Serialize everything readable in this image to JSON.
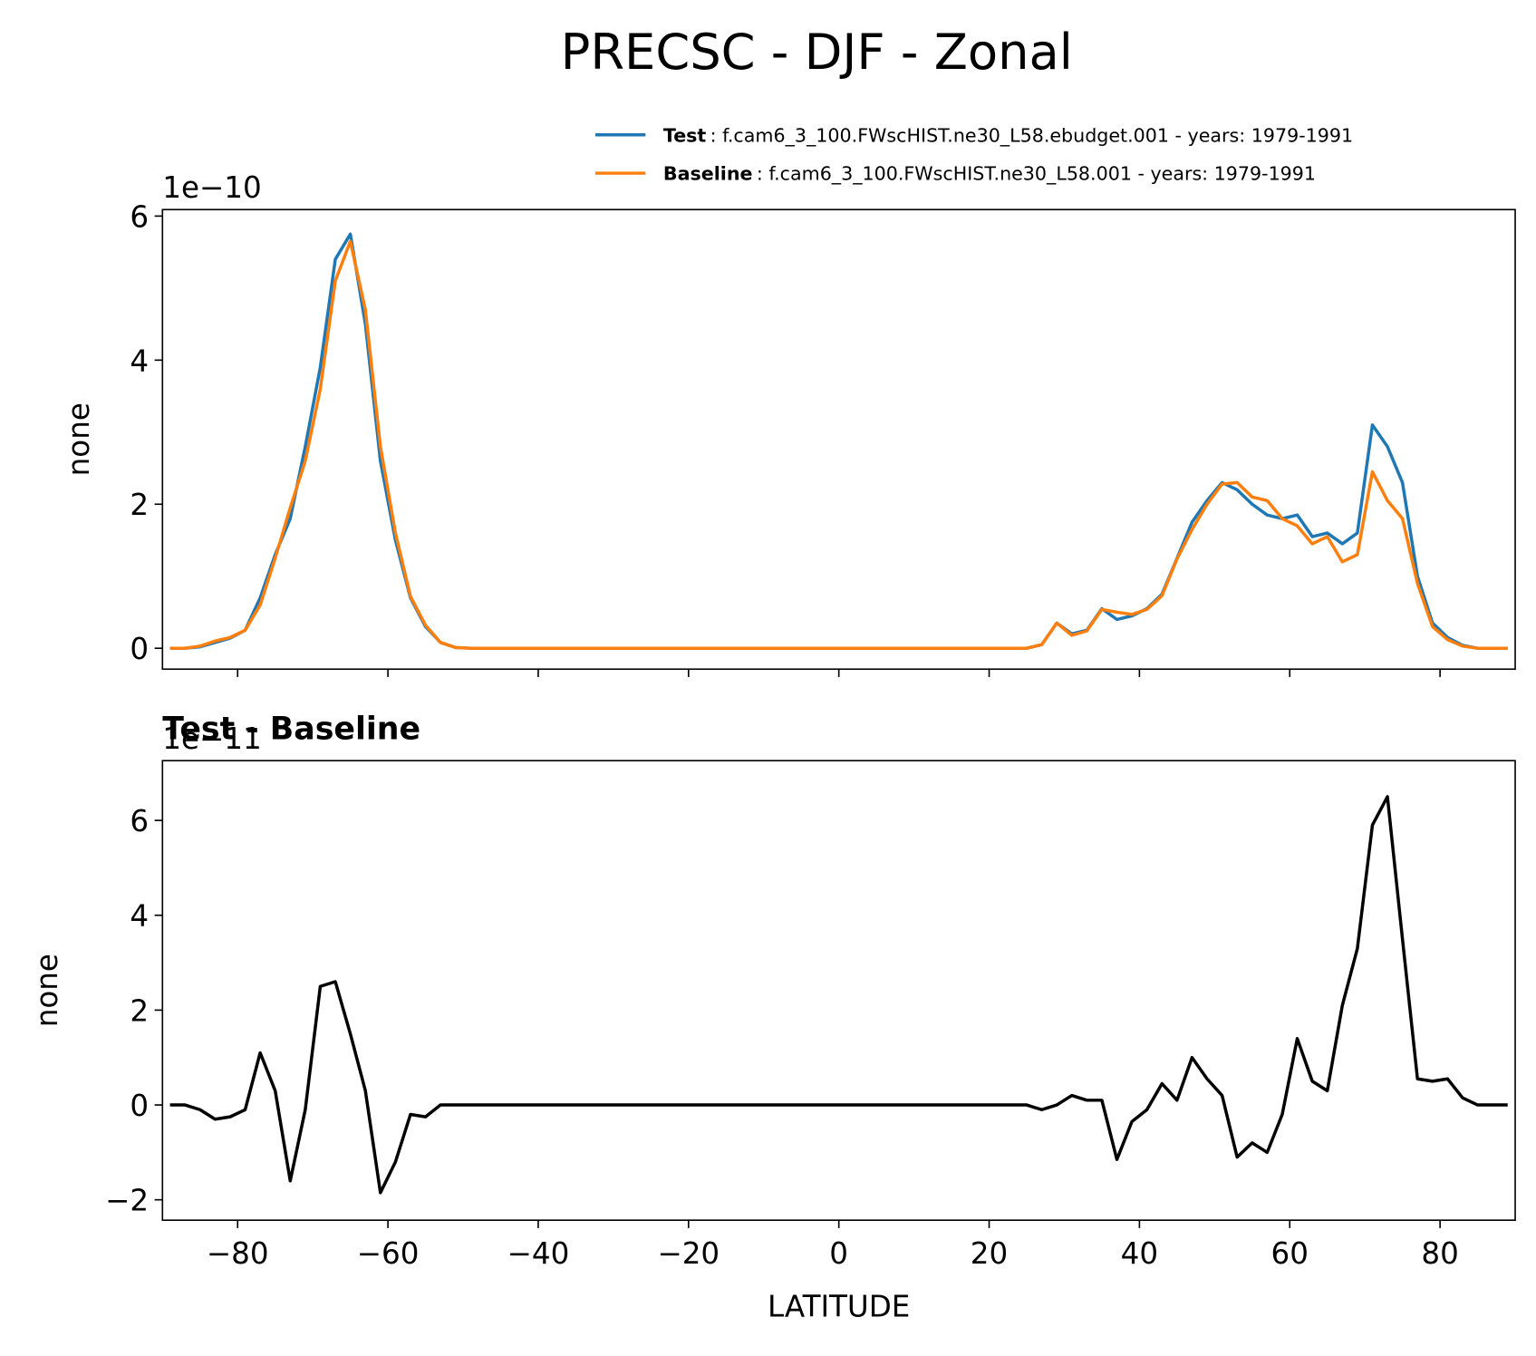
{
  "title": "PRECSC - DJF - Zonal",
  "chart_data": [
    {
      "type": "line",
      "y_offset_label": "1e−10",
      "ylabel": "none",
      "x": [
        -89,
        -87,
        -85,
        -83,
        -81,
        -79,
        -77,
        -75,
        -73,
        -71,
        -69,
        -67,
        -65,
        -63,
        -61,
        -59,
        -57,
        -55,
        -53,
        -51,
        -49,
        -47,
        -45,
        -43,
        -41,
        -39,
        -37,
        -35,
        -33,
        -31,
        -29,
        -27,
        -25,
        -23,
        -21,
        -19,
        -17,
        -15,
        -13,
        -11,
        -9,
        -7,
        -5,
        -3,
        -1,
        1,
        3,
        5,
        7,
        9,
        11,
        13,
        15,
        17,
        19,
        21,
        23,
        25,
        27,
        29,
        31,
        33,
        35,
        37,
        39,
        41,
        43,
        45,
        47,
        49,
        51,
        53,
        55,
        57,
        59,
        61,
        63,
        65,
        67,
        69,
        71,
        73,
        75,
        77,
        79,
        81,
        83,
        85,
        87,
        89
      ],
      "series": [
        {
          "name": "Test",
          "label": ": f.cam6_3_100.FWscHIST.ne30_L58.ebudget.001 - years: 1979-1991",
          "color": "#1f77b4",
          "values": [
            0,
            0,
            0.02,
            0.08,
            0.14,
            0.25,
            0.7,
            1.3,
            1.8,
            2.8,
            3.9,
            5.4,
            5.75,
            4.5,
            2.6,
            1.5,
            0.7,
            0.3,
            0.08,
            0.01,
            0,
            0,
            0,
            0,
            0,
            0,
            0,
            0,
            0,
            0,
            0,
            0,
            0,
            0,
            0,
            0,
            0,
            0,
            0,
            0,
            0,
            0,
            0,
            0,
            0,
            0,
            0,
            0,
            0,
            0,
            0,
            0,
            0,
            0,
            0,
            0,
            0,
            0,
            0.05,
            0.35,
            0.2,
            0.25,
            0.55,
            0.4,
            0.45,
            0.55,
            0.75,
            1.25,
            1.75,
            2.05,
            2.3,
            2.2,
            2.0,
            1.85,
            1.8,
            1.85,
            1.55,
            1.6,
            1.45,
            1.6,
            3.1,
            2.8,
            2.3,
            1.0,
            0.35,
            0.15,
            0.04,
            0,
            0,
            0
          ]
        },
        {
          "name": "Baseline",
          "label": ": f.cam6_3_100.FWscHIST.ne30_L58.001 - years: 1979-1991",
          "color": "#ff7f0e",
          "values": [
            0,
            0,
            0.03,
            0.1,
            0.15,
            0.25,
            0.6,
            1.25,
            1.95,
            2.6,
            3.6,
            5.1,
            5.65,
            4.7,
            2.8,
            1.6,
            0.72,
            0.32,
            0.08,
            0.01,
            0,
            0,
            0,
            0,
            0,
            0,
            0,
            0,
            0,
            0,
            0,
            0,
            0,
            0,
            0,
            0,
            0,
            0,
            0,
            0,
            0,
            0,
            0,
            0,
            0,
            0,
            0,
            0,
            0,
            0,
            0,
            0,
            0,
            0,
            0,
            0,
            0,
            0,
            0.05,
            0.35,
            0.18,
            0.24,
            0.54,
            0.5,
            0.47,
            0.54,
            0.73,
            1.24,
            1.65,
            2.0,
            2.28,
            2.3,
            2.1,
            2.05,
            1.8,
            1.7,
            1.45,
            1.55,
            1.2,
            1.3,
            2.45,
            2.05,
            1.8,
            0.9,
            0.3,
            0.12,
            0.03,
            0,
            0,
            0
          ]
        }
      ],
      "xlim": [
        -90,
        90
      ],
      "xticks": [
        -80,
        -60,
        -40,
        -20,
        0,
        20,
        40,
        60,
        80
      ],
      "ylim": [
        -0.29,
        6.09
      ],
      "yticks": [
        0,
        2,
        4,
        6
      ]
    },
    {
      "type": "line",
      "title": "Test - Baseline",
      "y_offset_label": "1e−11",
      "ylabel": "none",
      "xlabel": "LATITUDE",
      "x": [
        -89,
        -87,
        -85,
        -83,
        -81,
        -79,
        -77,
        -75,
        -73,
        -71,
        -69,
        -67,
        -65,
        -63,
        -61,
        -59,
        -57,
        -55,
        -53,
        -51,
        -49,
        -47,
        -45,
        -43,
        -41,
        -39,
        -37,
        -35,
        -33,
        -31,
        -29,
        -27,
        -25,
        -23,
        -21,
        -19,
        -17,
        -15,
        -13,
        -11,
        -9,
        -7,
        -5,
        -3,
        -1,
        1,
        3,
        5,
        7,
        9,
        11,
        13,
        15,
        17,
        19,
        21,
        23,
        25,
        27,
        29,
        31,
        33,
        35,
        37,
        39,
        41,
        43,
        45,
        47,
        49,
        51,
        53,
        55,
        57,
        59,
        61,
        63,
        65,
        67,
        69,
        71,
        73,
        75,
        77,
        79,
        81,
        83,
        85,
        87,
        89
      ],
      "series": [
        {
          "color": "#000000",
          "values": [
            0,
            0,
            -0.1,
            -0.3,
            -0.25,
            -0.1,
            1.1,
            0.3,
            -1.6,
            -0.1,
            2.5,
            2.6,
            1.5,
            0.3,
            -1.85,
            -1.2,
            -0.2,
            -0.25,
            0,
            0,
            0,
            0,
            0,
            0,
            0,
            0,
            0,
            0,
            0,
            0,
            0,
            0,
            0,
            0,
            0,
            0,
            0,
            0,
            0,
            0,
            0,
            0,
            0,
            0,
            0,
            0,
            0,
            0,
            0,
            0,
            0,
            0,
            0,
            0,
            0,
            0,
            0,
            0,
            -0.1,
            0.0,
            0.2,
            0.1,
            0.1,
            -1.15,
            -0.35,
            -0.1,
            0.45,
            0.1,
            1.0,
            0.55,
            0.2,
            -1.1,
            -0.8,
            -1.0,
            -0.2,
            1.4,
            0.5,
            0.3,
            2.1,
            3.3,
            5.9,
            6.5,
            3.5,
            0.55,
            0.5,
            0.55,
            0.15,
            0,
            0,
            0
          ]
        }
      ],
      "xlim": [
        -90,
        90
      ],
      "xticks": [
        {
          "value": -80,
          "label": "−80"
        },
        {
          "value": -60,
          "label": "−60"
        },
        {
          "value": -40,
          "label": "−40"
        },
        {
          "value": -20,
          "label": "−20"
        },
        0,
        20,
        40,
        60,
        80
      ],
      "ylim": [
        -2.43,
        7.26
      ],
      "yticks": [
        {
          "value": -2,
          "label": "−2"
        },
        0,
        2,
        4,
        6
      ]
    }
  ]
}
